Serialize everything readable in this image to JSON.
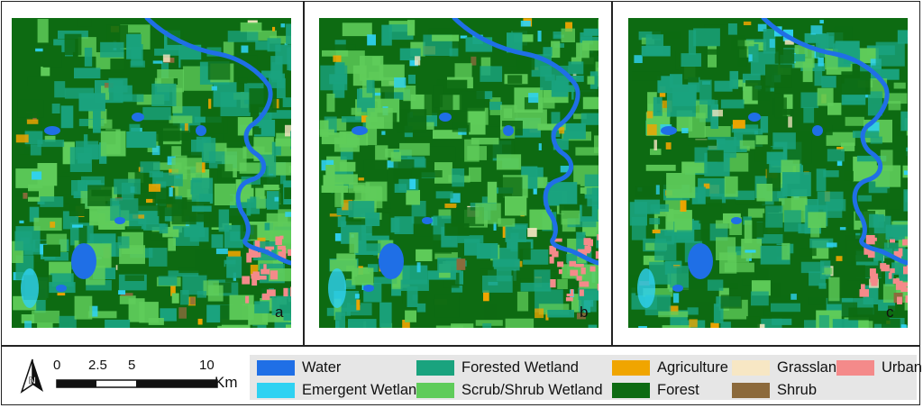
{
  "panels": [
    {
      "letter": "a"
    },
    {
      "letter": "b"
    },
    {
      "letter": "c"
    }
  ],
  "scale_bar": {
    "ticks": [
      "0",
      "2.5",
      "5",
      "10"
    ],
    "unit": "Km"
  },
  "north_arrow": {
    "label": "N"
  },
  "legend": [
    {
      "label": "Water",
      "color": "#1f6fe6"
    },
    {
      "label": "Emergent Wetland",
      "color": "#2fd2f2"
    },
    {
      "label": "Forested Wetland",
      "color": "#1aa37e"
    },
    {
      "label": "Scrub/Shrub Wetland",
      "color": "#5fcc5a"
    },
    {
      "label": "Agriculture",
      "color": "#f0a500"
    },
    {
      "label": "Forest",
      "color": "#0d6b12"
    },
    {
      "label": "Grassland",
      "color": "#f7e7c4"
    },
    {
      "label": "Shrub",
      "color": "#8c6a3c"
    },
    {
      "label": "Urban",
      "color": "#f48a8a"
    }
  ]
}
